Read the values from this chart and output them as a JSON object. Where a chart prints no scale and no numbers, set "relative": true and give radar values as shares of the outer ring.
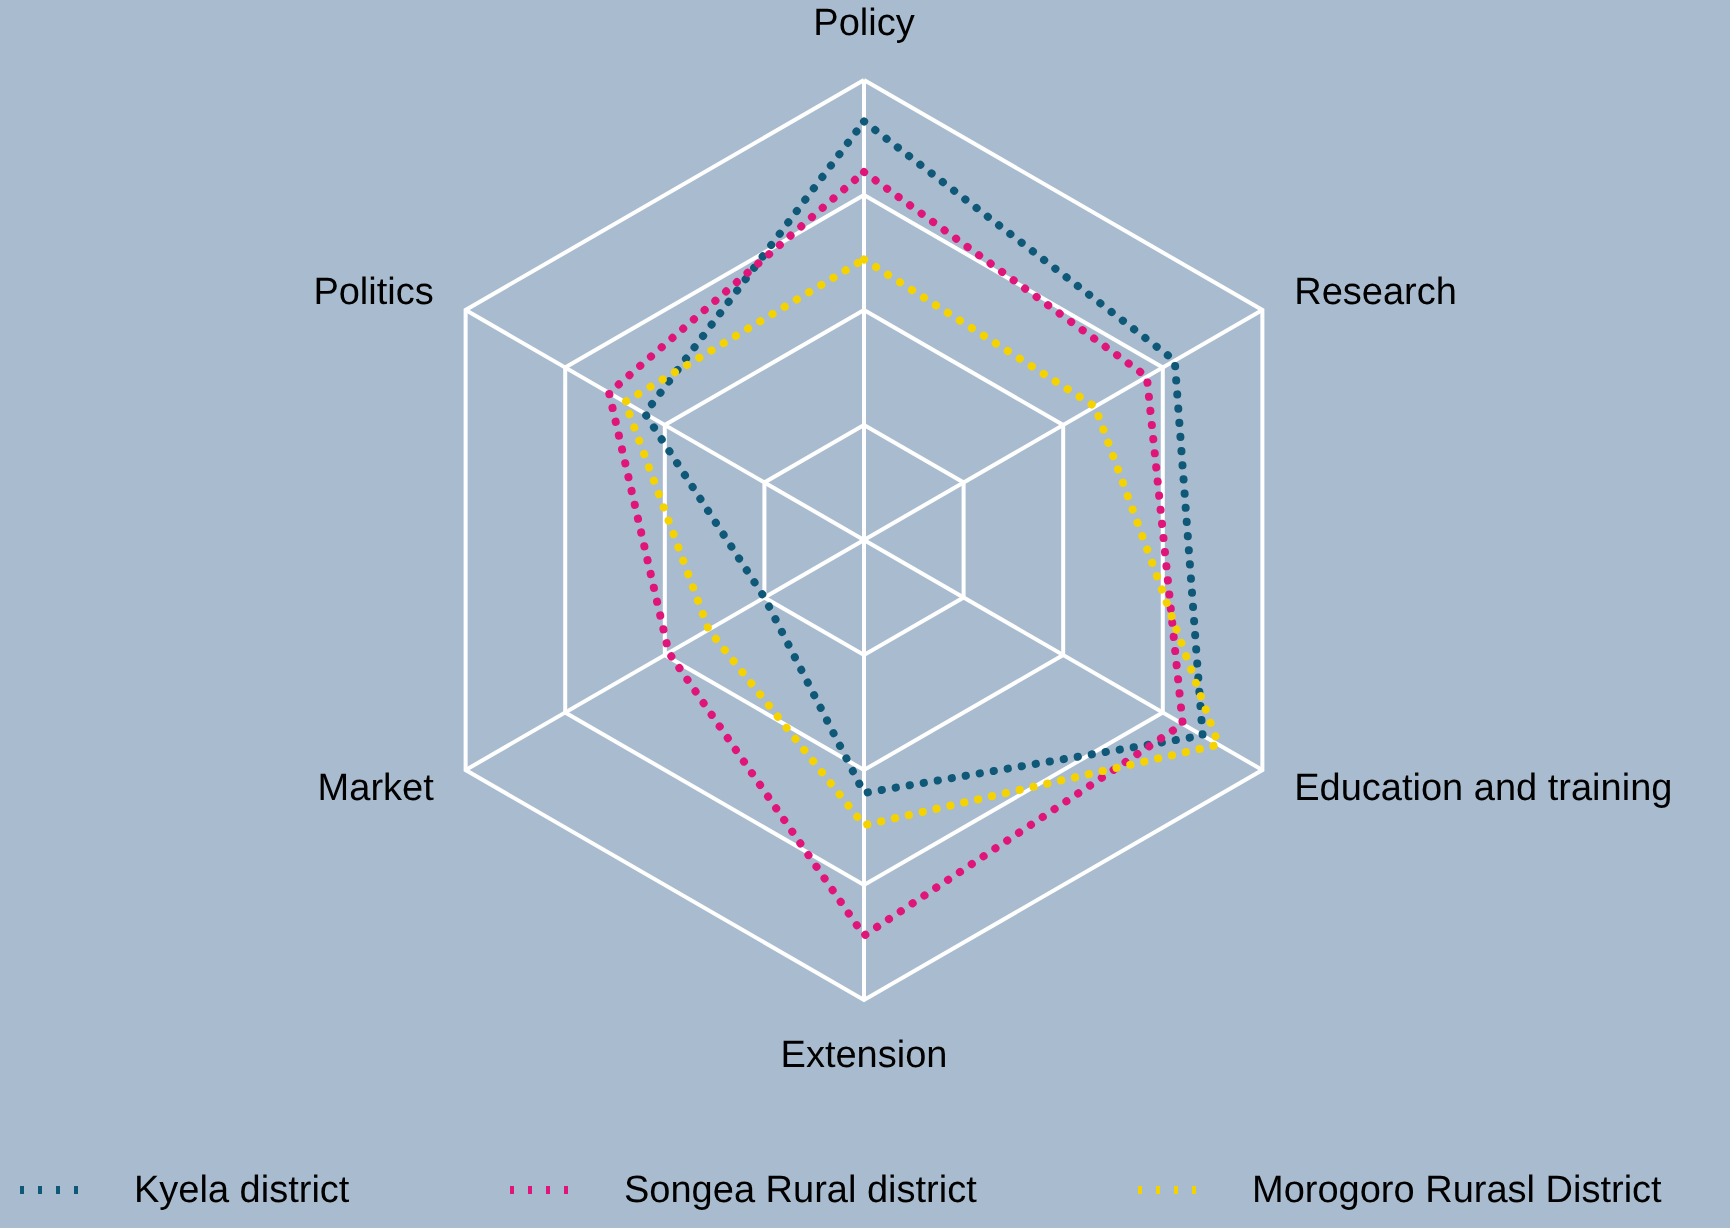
{
  "chart_data": {
    "type": "radar",
    "relative": true,
    "grid": true,
    "legend": "bottom",
    "line_style": "dotted",
    "marker": "none",
    "categories": [
      "Policy",
      "Research",
      "Education and training",
      "Extension",
      "Market",
      "Politics"
    ],
    "series": [
      {
        "name": "Kyela district",
        "color": "#0f5878",
        "values": [
          0.91,
          0.78,
          0.85,
          0.55,
          0.25,
          0.55
        ]
      },
      {
        "name": "Songea Rural district",
        "color": "#e0157a",
        "values": [
          0.8,
          0.71,
          0.8,
          0.86,
          0.49,
          0.64
        ]
      },
      {
        "name": "Morogoro Rurasl District",
        "color": "#f5d300",
        "values": [
          0.61,
          0.58,
          0.89,
          0.62,
          0.39,
          0.6
        ]
      }
    ]
  }
}
